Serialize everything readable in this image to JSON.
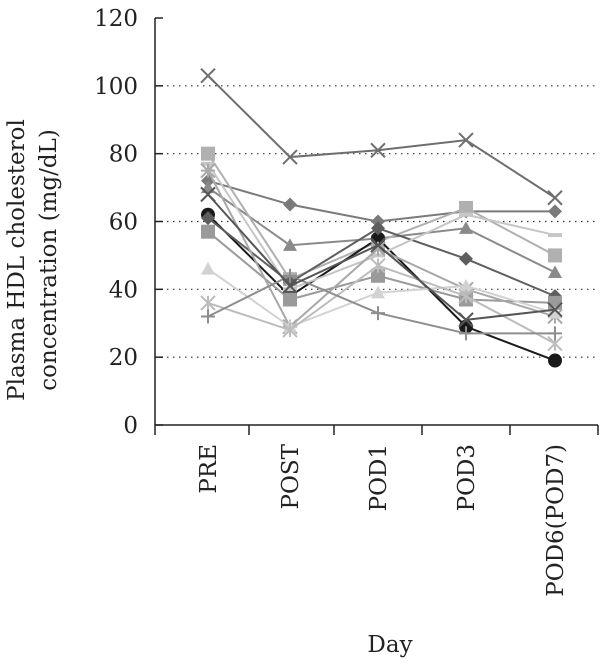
{
  "chart_data": {
    "type": "line",
    "title": "",
    "xlabel": "Day",
    "ylabel": "Plasma HDL cholesterol concentration (mg/dL)",
    "ylabel_lines": [
      "Plasma HDL cholesterol",
      "concentration (mg/dL)"
    ],
    "categories": [
      "PRE",
      "POST",
      "POD1",
      "POD3",
      "POD6(POD7)"
    ],
    "ylim": [
      0,
      120
    ],
    "yticks": [
      0,
      20,
      40,
      60,
      80,
      100,
      120
    ],
    "grid": "horizontal-dotted",
    "legend": "none",
    "series": [
      {
        "values": [
          103,
          79,
          81,
          84,
          67
        ],
        "marker": "x",
        "color": "#6e6e6e"
      },
      {
        "values": [
          72,
          65,
          60,
          63,
          63
        ],
        "marker": "diamond",
        "color": "#7a7a7a"
      },
      {
        "values": [
          70,
          53,
          55,
          58,
          45
        ],
        "marker": "triangle",
        "color": "#8a8a8a"
      },
      {
        "values": [
          80,
          43,
          54,
          64,
          50
        ],
        "marker": "square",
        "color": "#b0b0b0"
      },
      {
        "values": [
          62,
          38,
          55,
          29,
          19
        ],
        "marker": "circle",
        "color": "#1a1a1a"
      },
      {
        "values": [
          61,
          42,
          58,
          49,
          38
        ],
        "marker": "diamond",
        "color": "#5e5e5e"
      },
      {
        "values": [
          57,
          37,
          44,
          37,
          36
        ],
        "marker": "square",
        "color": "#9a9a9a"
      },
      {
        "values": [
          77,
          40,
          50,
          62,
          56
        ],
        "marker": "dash",
        "color": "#c6c6c6"
      },
      {
        "values": [
          75,
          29,
          52,
          40,
          32
        ],
        "marker": "star",
        "color": "#a8a8a8"
      },
      {
        "values": [
          46,
          29,
          39,
          41,
          33
        ],
        "marker": "triangle",
        "color": "#d2d2d2"
      },
      {
        "values": [
          36,
          28,
          47,
          38,
          24
        ],
        "marker": "asterisk",
        "color": "#bcbcbc"
      },
      {
        "values": [
          32,
          44,
          33,
          27,
          27
        ],
        "marker": "plus",
        "color": "#8e8e8e"
      },
      {
        "values": [
          68,
          41,
          53,
          31,
          34
        ],
        "marker": "x",
        "color": "#555555"
      }
    ]
  }
}
